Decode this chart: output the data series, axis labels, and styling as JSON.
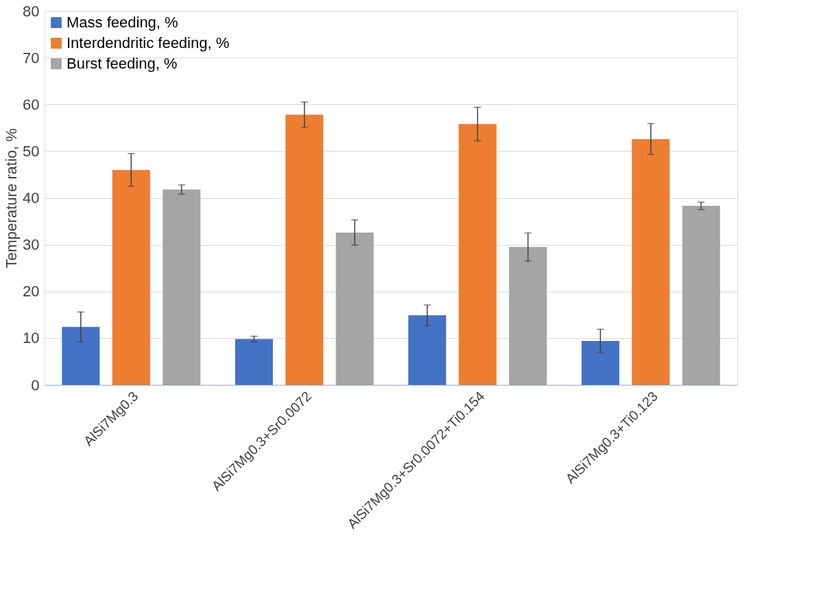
{
  "chart_data": {
    "type": "bar",
    "ylabel": "Temperature ratio, %",
    "categories": [
      "AlSi7Mg0.3",
      "AlSi7Mg0.3+Sr0.0072",
      "AlSi7Mg0.3+Sr0.0072+Ti0.154",
      "AlSi7Mg0.3+Ti0.123"
    ],
    "series": [
      {
        "name": "Mass feeding, %",
        "color": "#4472c4",
        "values": [
          12.4,
          9.8,
          14.9,
          9.4
        ],
        "errors": [
          3.2,
          0.6,
          2.2,
          2.5
        ]
      },
      {
        "name": "Interdendritic feeding, %",
        "color": "#ed7d31",
        "values": [
          46,
          57.8,
          55.8,
          52.6
        ],
        "errors": [
          3.5,
          2.7,
          3.6,
          3.3
        ]
      },
      {
        "name": "Burst feeding, %",
        "color": "#a5a5a5",
        "values": [
          41.8,
          32.6,
          29.5,
          38.3
        ],
        "errors": [
          1,
          2.7,
          3,
          0.8
        ]
      }
    ],
    "ylim": [
      0,
      80
    ],
    "yticks": [
      0,
      10,
      20,
      30,
      40,
      50,
      60,
      70,
      80
    ],
    "grid": "y",
    "legend": "top left"
  }
}
